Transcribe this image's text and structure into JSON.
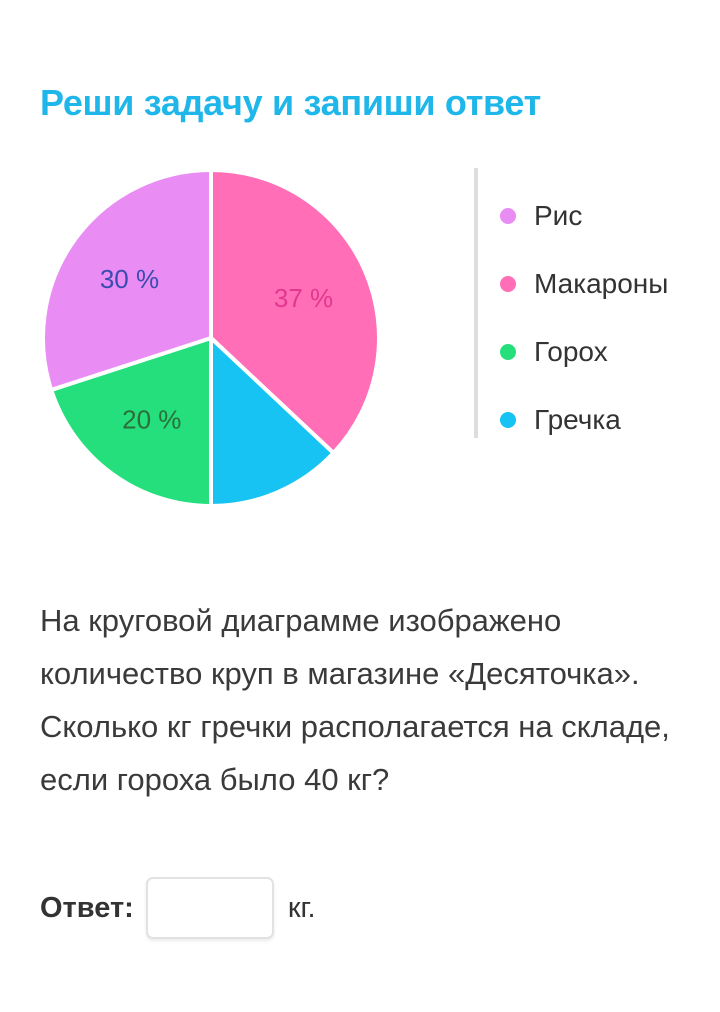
{
  "title": "Реши задачу и запиши ответ",
  "chart_data": {
    "type": "pie",
    "slices": [
      {
        "name": "Макароны",
        "value": 37,
        "label": "37 %",
        "color": "#ff6eb6",
        "label_color": "#e0398f"
      },
      {
        "name": "Гречка",
        "value": 13,
        "label": "",
        "color": "#17c3f2",
        "label_color": "#3a3a3a"
      },
      {
        "name": "Горох",
        "value": 20,
        "label": "20 %",
        "color": "#25df7c",
        "label_color": "#2b6e3c"
      },
      {
        "name": "Рис",
        "value": 30,
        "label": "30 %",
        "color": "#e98cf3",
        "label_color": "#3a4cb0"
      }
    ],
    "legend_position": "right",
    "legend": [
      {
        "label": "Рис",
        "color": "#e98cf3"
      },
      {
        "label": "Макароны",
        "color": "#ff6eb6"
      },
      {
        "label": "Горох",
        "color": "#25df7c"
      },
      {
        "label": "Гречка",
        "color": "#17c3f2"
      }
    ]
  },
  "question": "На круговой диаграмме изображено количество круп в магазине «Десяточка». Сколько кг гречки располагается на складе, если гороха было 40 кг?",
  "answer": {
    "label": "Ответ:",
    "value": "",
    "placeholder": "",
    "unit": "кг."
  }
}
